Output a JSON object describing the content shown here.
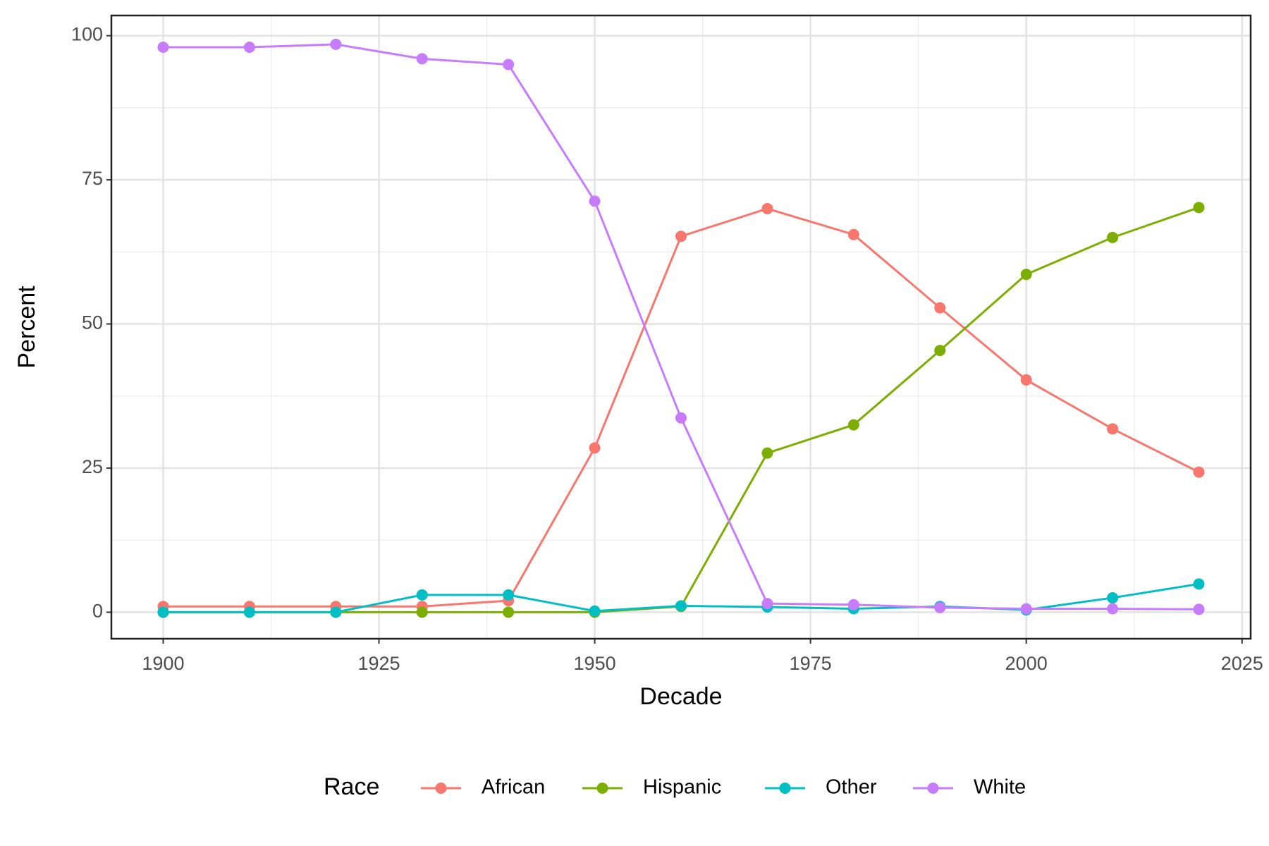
{
  "chart_data": {
    "type": "line",
    "x": [
      1900,
      1910,
      1920,
      1930,
      1940,
      1950,
      1960,
      1970,
      1980,
      1990,
      2000,
      2010,
      2020
    ],
    "series": [
      {
        "name": "African",
        "color": "#F8766D",
        "values": [
          1,
          1,
          1,
          1,
          2,
          28.5,
          65.2,
          70,
          65.5,
          52.8,
          40.3,
          31.8,
          24.3
        ]
      },
      {
        "name": "Hispanic",
        "color": "#7CAE00",
        "values": [
          0,
          0,
          0,
          0,
          0,
          0,
          1,
          27.6,
          32.5,
          45.4,
          58.6,
          65,
          70.2
        ]
      },
      {
        "name": "Other",
        "color": "#00BFC4",
        "values": [
          0,
          0,
          0,
          3,
          3,
          0.2,
          1.1,
          0.9,
          0.6,
          1,
          0.4,
          2.5,
          4.9
        ]
      },
      {
        "name": "White",
        "color": "#C77CFF",
        "values": [
          98,
          98,
          98.5,
          96,
          95,
          71.3,
          33.7,
          1.5,
          1.3,
          0.8,
          0.6,
          0.6,
          0.5
        ]
      }
    ],
    "x_label": "Decade",
    "y_label": "Percent",
    "legend_title": "Race",
    "legend_position": "bottom",
    "xlim": [
      1894,
      2026
    ],
    "xticks": [
      1900,
      1925,
      1950,
      1975,
      2000,
      2025
    ],
    "ylim": [
      -4.6,
      103.5
    ],
    "yticks": [
      0,
      25,
      50,
      75,
      100
    ],
    "grid": true
  }
}
